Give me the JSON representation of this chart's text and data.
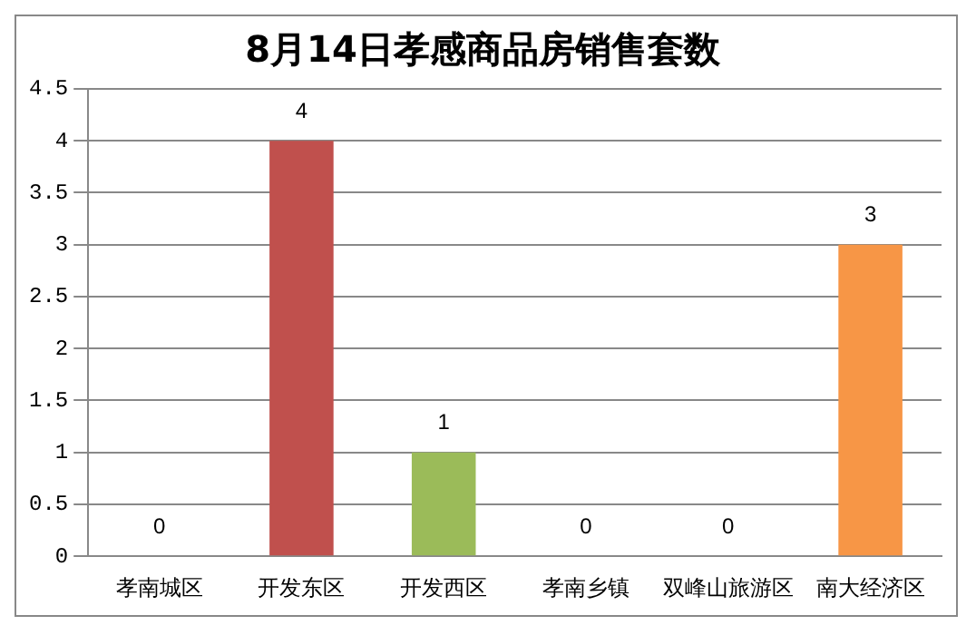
{
  "chart_data": {
    "type": "bar",
    "title": "8月14日孝感商品房销售套数",
    "categories": [
      "孝南城区",
      "开发东区",
      "开发西区",
      "孝南乡镇",
      "双峰山旅游区",
      "南大经济区"
    ],
    "values": [
      0,
      4,
      1,
      0,
      0,
      3
    ],
    "colors": [
      "#4f81bd",
      "#c0504d",
      "#9bbb59",
      "#8064a2",
      "#4bacc6",
      "#f79646"
    ],
    "ylim": [
      0,
      4.5
    ],
    "yticks": [
      0,
      0.5,
      1,
      1.5,
      2,
      2.5,
      3,
      3.5,
      4,
      4.5
    ],
    "grid": "y",
    "data_labels": true,
    "legend": false
  }
}
